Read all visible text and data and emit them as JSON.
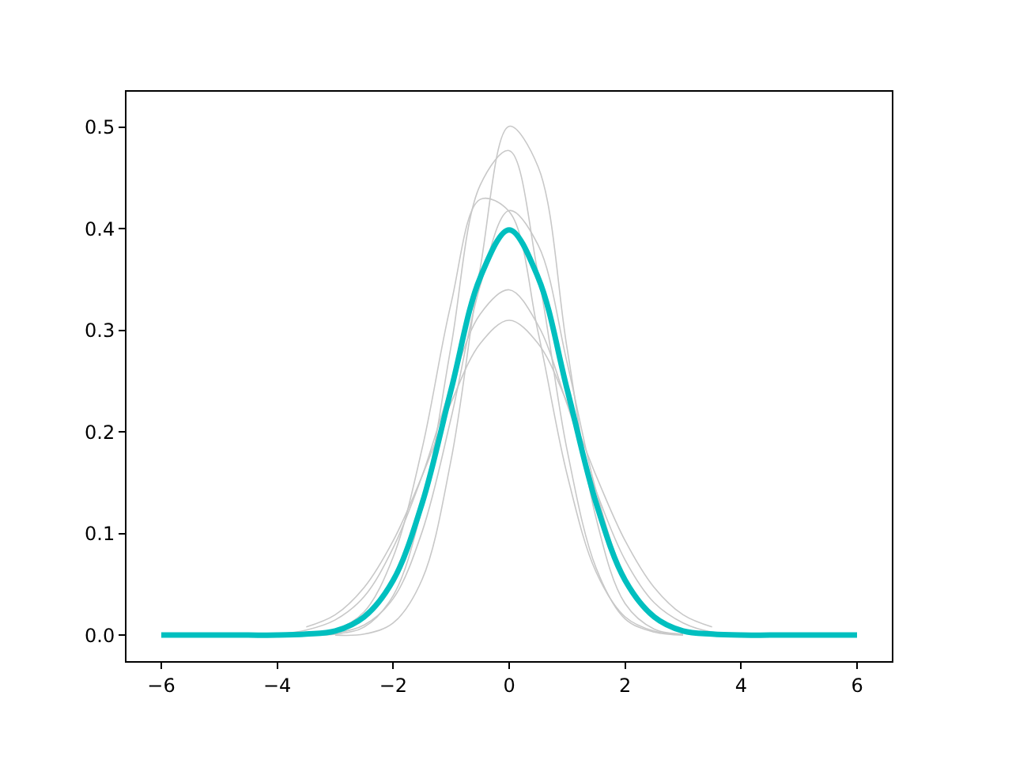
{
  "chart_data": {
    "type": "line",
    "x": [
      -4,
      -3.5,
      -3,
      -2.5,
      -2,
      -1.5,
      -1,
      -0.5,
      0,
      0.5,
      1,
      1.5,
      2,
      2.5,
      3,
      3.5,
      4
    ],
    "series": [
      {
        "color": "#c8c8c8",
        "x": [
          -3,
          -2.5,
          -2,
          -1.5,
          -1,
          -0.5,
          0,
          0.5,
          1,
          1.5,
          2,
          2.5,
          3
        ],
        "values": [
          0,
          0.001,
          0.012,
          0.055,
          0.173,
          0.361,
          0.501,
          0.461,
          0.282,
          0.115,
          0.031,
          0.006,
          0.001
        ]
      },
      {
        "color": "#c8c8c8",
        "x": [
          -3.5,
          -3,
          -2.5,
          -2,
          -1.5,
          -1,
          -0.5,
          0,
          0.5,
          1,
          1.5,
          2,
          2.5,
          3
        ],
        "values": [
          0,
          0.001,
          0.008,
          0.039,
          0.126,
          0.285,
          0.443,
          0.477,
          0.355,
          0.182,
          0.066,
          0.016,
          0.003,
          0
        ]
      },
      {
        "color": "#c8c8c8",
        "x": [
          -3.5,
          -3,
          -2.5,
          -2,
          -1.5,
          -1,
          -0.5,
          0,
          0.5,
          1,
          1.5,
          2,
          2.5,
          3
        ],
        "values": [
          0.001,
          0.005,
          0.023,
          0.077,
          0.184,
          0.327,
          0.429,
          0.417,
          0.298,
          0.158,
          0.062,
          0.018,
          0.004,
          0.001
        ]
      },
      {
        "color": "#c8c8c8",
        "x": [
          -3,
          -2.5,
          -2,
          -1.5,
          -1,
          -0.5,
          0,
          0.5,
          1,
          1.5,
          2,
          2.5,
          3,
          3.5
        ],
        "values": [
          0.002,
          0.01,
          0.036,
          0.102,
          0.214,
          0.344,
          0.418,
          0.384,
          0.268,
          0.142,
          0.057,
          0.017,
          0.004,
          0.001
        ]
      },
      {
        "color": "#c8c8c8",
        "values": [
          0.001,
          0.005,
          0.015,
          0.038,
          0.086,
          0.157,
          0.245,
          0.316,
          0.34,
          0.305,
          0.227,
          0.142,
          0.074,
          0.032,
          0.012,
          0.003,
          0.001
        ]
      },
      {
        "color": "#c8c8c8",
        "x": [
          -3.5,
          -3,
          -2.5,
          -2,
          -1.5,
          -1,
          -0.5,
          0,
          0.5,
          1,
          1.5,
          2,
          2.5,
          3,
          3.5
        ],
        "values": [
          0.008,
          0.02,
          0.047,
          0.093,
          0.157,
          0.229,
          0.287,
          0.31,
          0.287,
          0.229,
          0.157,
          0.093,
          0.047,
          0.02,
          0.008
        ]
      },
      {
        "color": "#00bfbf",
        "x": [
          -6,
          -5.5,
          -5,
          -4.5,
          -4,
          -3.5,
          -3,
          -2.5,
          -2,
          -1.5,
          -1,
          -0.5,
          0,
          0.5,
          1,
          1.5,
          2,
          2.5,
          3,
          3.5,
          4,
          4.5,
          5,
          5.5,
          6
        ],
        "values": [
          0,
          0,
          0,
          0,
          0,
          0.001,
          0.004,
          0.018,
          0.054,
          0.13,
          0.242,
          0.352,
          0.399,
          0.352,
          0.242,
          0.13,
          0.054,
          0.018,
          0.004,
          0.001,
          0,
          0,
          0,
          0,
          0
        ]
      }
    ],
    "xlim": [
      -6.6,
      6.6
    ],
    "xticks": [
      -6,
      -4,
      -2,
      0,
      2,
      4,
      6
    ],
    "ylim": [
      -0.0256,
      0.535
    ],
    "yticks": [
      {
        "value": 0,
        "label": "0.0"
      },
      {
        "value": 0.1,
        "label": "0.1"
      },
      {
        "value": 0.2,
        "label": "0.2"
      },
      {
        "value": 0.3,
        "label": "0.3"
      },
      {
        "value": 0.4,
        "label": "0.4"
      },
      {
        "value": 0.5,
        "label": "0.5"
      }
    ],
    "marker": "none",
    "line_style": "solid"
  }
}
